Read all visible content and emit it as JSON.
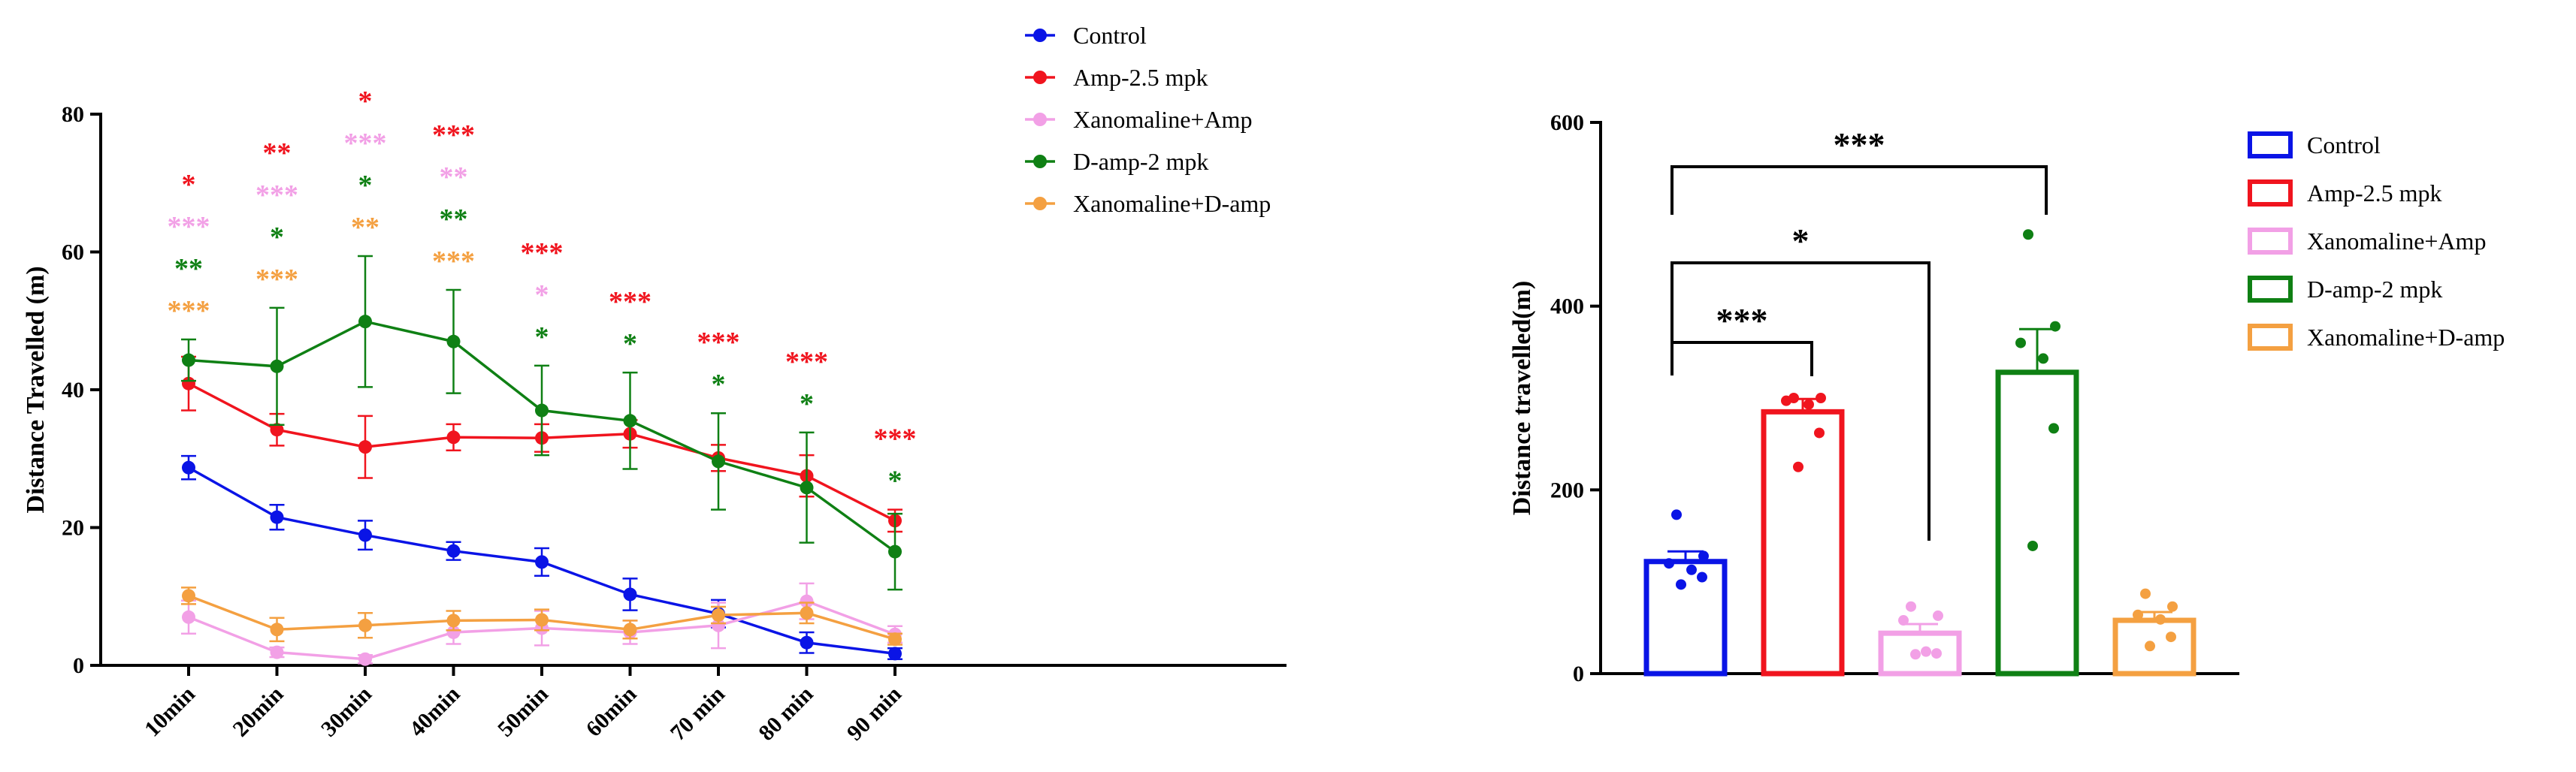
{
  "chart_data": [
    {
      "type": "line",
      "title": "",
      "xlabel": "",
      "ylabel": "Distance Travelled (m)",
      "ylim": [
        0,
        80
      ],
      "yticks": [
        0,
        20,
        40,
        60,
        80
      ],
      "categories": [
        "10min",
        "20min",
        "30min",
        "40min",
        "50min",
        "60min",
        "70 min",
        "80 min",
        "90 min"
      ],
      "legend_position": "top-right",
      "series": [
        {
          "name": "Control",
          "color": "#0a14e6",
          "values": [
            28.7,
            21.5,
            18.9,
            16.6,
            15.0,
            10.3,
            7.5,
            3.3,
            1.7
          ],
          "errors": [
            1.7,
            1.8,
            2.1,
            1.3,
            2.0,
            2.3,
            2.0,
            1.5,
            0.8
          ]
        },
        {
          "name": "Amp-2.5 mpk",
          "color": "#f0141e",
          "values": [
            40.9,
            34.2,
            31.7,
            33.1,
            33.0,
            33.6,
            30.1,
            27.5,
            21.0
          ],
          "errors": [
            3.9,
            2.3,
            4.5,
            1.9,
            2.0,
            2.0,
            1.9,
            3.0,
            1.6
          ]
        },
        {
          "name": "Xanomaline+Amp",
          "color": "#f2a0e6",
          "values": [
            7.0,
            1.9,
            0.9,
            4.8,
            5.4,
            4.8,
            5.8,
            9.3,
            4.5
          ],
          "errors": [
            2.4,
            0.7,
            0.6,
            1.7,
            2.5,
            1.7,
            3.3,
            2.6,
            1.2
          ]
        },
        {
          "name": "D-amp-2 mpk",
          "color": "#0f8014",
          "values": [
            44.3,
            43.4,
            49.9,
            47.0,
            37.0,
            35.5,
            29.6,
            25.8,
            16.5
          ],
          "errors": [
            3.0,
            8.5,
            9.5,
            7.5,
            6.5,
            7.0,
            7.0,
            8.0,
            5.5
          ]
        },
        {
          "name": "Xanomaline+D-amp",
          "color": "#f4a041",
          "values": [
            10.1,
            5.2,
            5.8,
            6.5,
            6.6,
            5.2,
            7.3,
            7.6,
            3.8
          ],
          "errors": [
            1.2,
            1.7,
            1.8,
            1.4,
            1.5,
            1.3,
            1.2,
            1.5,
            0.8
          ]
        }
      ],
      "annotations": [
        {
          "category": "10min",
          "marks": [
            {
              "series": "Amp-2.5 mpk",
              "text": "*"
            },
            {
              "series": "Xanomaline+Amp",
              "text": "***"
            },
            {
              "series": "D-amp-2 mpk",
              "text": "**"
            },
            {
              "series": "Xanomaline+D-amp",
              "text": "***"
            }
          ]
        },
        {
          "category": "20min",
          "marks": [
            {
              "series": "Amp-2.5 mpk",
              "text": "**"
            },
            {
              "series": "Xanomaline+Amp",
              "text": "***"
            },
            {
              "series": "D-amp-2 mpk",
              "text": "*"
            },
            {
              "series": "Xanomaline+D-amp",
              "text": "***"
            }
          ]
        },
        {
          "category": "30min",
          "marks": [
            {
              "series": "Amp-2.5 mpk",
              "text": "*"
            },
            {
              "series": "Xanomaline+Amp",
              "text": "***"
            },
            {
              "series": "D-amp-2 mpk",
              "text": "*"
            },
            {
              "series": "Xanomaline+D-amp",
              "text": "**"
            }
          ]
        },
        {
          "category": "40min",
          "marks": [
            {
              "series": "Amp-2.5 mpk",
              "text": "***"
            },
            {
              "series": "Xanomaline+Amp",
              "text": "**"
            },
            {
              "series": "D-amp-2 mpk",
              "text": "**"
            },
            {
              "series": "Xanomaline+D-amp",
              "text": "***"
            }
          ]
        },
        {
          "category": "50min",
          "marks": [
            {
              "series": "Amp-2.5 mpk",
              "text": "***"
            },
            {
              "series": "Xanomaline+Amp",
              "text": "*"
            },
            {
              "series": "D-amp-2 mpk",
              "text": "*"
            }
          ]
        },
        {
          "category": "60min",
          "marks": [
            {
              "series": "Amp-2.5 mpk",
              "text": "***"
            },
            {
              "series": "D-amp-2 mpk",
              "text": "*"
            }
          ]
        },
        {
          "category": "70 min",
          "marks": [
            {
              "series": "Amp-2.5 mpk",
              "text": "***"
            },
            {
              "series": "D-amp-2 mpk",
              "text": "*"
            }
          ]
        },
        {
          "category": "80 min",
          "marks": [
            {
              "series": "Amp-2.5 mpk",
              "text": "***"
            },
            {
              "series": "D-amp-2 mpk",
              "text": "*"
            }
          ]
        },
        {
          "category": "90 min",
          "marks": [
            {
              "series": "Amp-2.5 mpk",
              "text": "***"
            },
            {
              "series": "D-amp-2 mpk",
              "text": "*"
            }
          ]
        }
      ]
    },
    {
      "type": "bar",
      "title": "",
      "xlabel": "",
      "ylabel": "Distance travelled(m)",
      "ylim": [
        0,
        600
      ],
      "yticks": [
        0,
        200,
        400,
        600
      ],
      "legend_position": "right",
      "categories": [
        "Control",
        "Amp-2.5 mpk",
        "Xanomaline+Amp",
        "D-amp-2 mpk",
        "Xanomaline+D-amp"
      ],
      "colors": [
        "#0a14e6",
        "#f0141e",
        "#f2a0e6",
        "#0f8014",
        "#f4a041"
      ],
      "values": [
        122,
        285,
        44,
        328,
        58
      ],
      "errors": [
        11,
        14,
        10,
        47,
        9
      ],
      "points": [
        [
          173,
          128,
          120,
          113,
          105,
          97
        ],
        [
          300,
          300,
          297,
          293,
          262,
          225
        ],
        [
          73,
          63,
          58,
          24,
          22,
          21
        ],
        [
          478,
          378,
          360,
          343,
          267,
          139
        ],
        [
          87,
          73,
          64,
          59,
          40,
          30
        ]
      ],
      "comparisons": [
        {
          "from": "Control",
          "to": "Amp-2.5 mpk",
          "text": "***"
        },
        {
          "from": "Control",
          "to": "Xanomaline+Amp",
          "text": "*"
        },
        {
          "from": "Control",
          "to": "D-amp-2 mpk",
          "text": "***"
        }
      ]
    }
  ]
}
